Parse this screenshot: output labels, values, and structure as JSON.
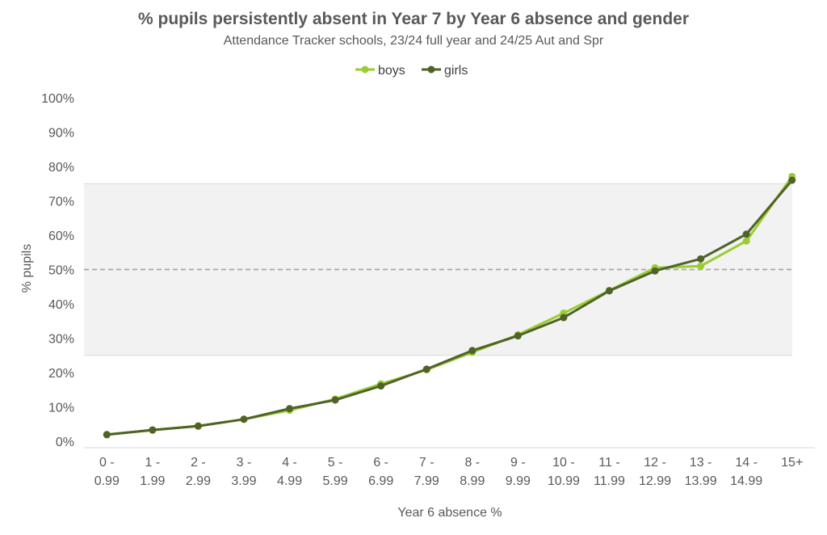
{
  "chart_data": {
    "type": "line",
    "title": "% pupils persistently absent in Year 7 by Year 6 absence and gender",
    "subtitle": "Attendance Tracker schools, 23/24 full year and 24/25 Aut and Spr",
    "xlabel": "Year 6 absence %",
    "ylabel": "% pupils",
    "categories": [
      [
        "0 -",
        "0.99"
      ],
      [
        "1 -",
        "1.99"
      ],
      [
        "2 -",
        "2.99"
      ],
      [
        "3 -",
        "3.99"
      ],
      [
        "4 -",
        "4.99"
      ],
      [
        "5 -",
        "5.99"
      ],
      [
        "6 -",
        "6.99"
      ],
      [
        "7 -",
        "7.99"
      ],
      [
        "8 -",
        "8.99"
      ],
      [
        "9 -",
        "9.99"
      ],
      [
        "10 -",
        "10.99"
      ],
      [
        "11 -",
        "11.99"
      ],
      [
        "12 -",
        "12.99"
      ],
      [
        "13 -",
        "13.99"
      ],
      [
        "14 -",
        "14.99"
      ],
      [
        "15+"
      ]
    ],
    "ylim": [
      0,
      100
    ],
    "yticks": [
      "0%",
      "10%",
      "20%",
      "30%",
      "40%",
      "50%",
      "60%",
      "70%",
      "80%",
      "90%",
      "100%"
    ],
    "yticks_values": [
      0,
      10,
      20,
      30,
      40,
      50,
      60,
      70,
      80,
      90,
      100
    ],
    "shaded_band": [
      25,
      75
    ],
    "reference_line": 50,
    "legend_position": "top",
    "series": [
      {
        "name": "boys",
        "color": "#9acd32",
        "values": [
          2.0,
          3.2,
          4.5,
          6.4,
          9.0,
          12.3,
          16.7,
          20.8,
          25.9,
          31.0,
          37.3,
          43.9,
          50.5,
          51.0,
          58.3,
          77.1
        ]
      },
      {
        "name": "girls",
        "color": "#4f6228",
        "values": [
          1.9,
          3.3,
          4.4,
          6.4,
          9.5,
          12.0,
          16.1,
          21.0,
          26.4,
          30.7,
          36.0,
          43.8,
          49.6,
          53.1,
          60.3,
          76.0
        ]
      }
    ]
  }
}
